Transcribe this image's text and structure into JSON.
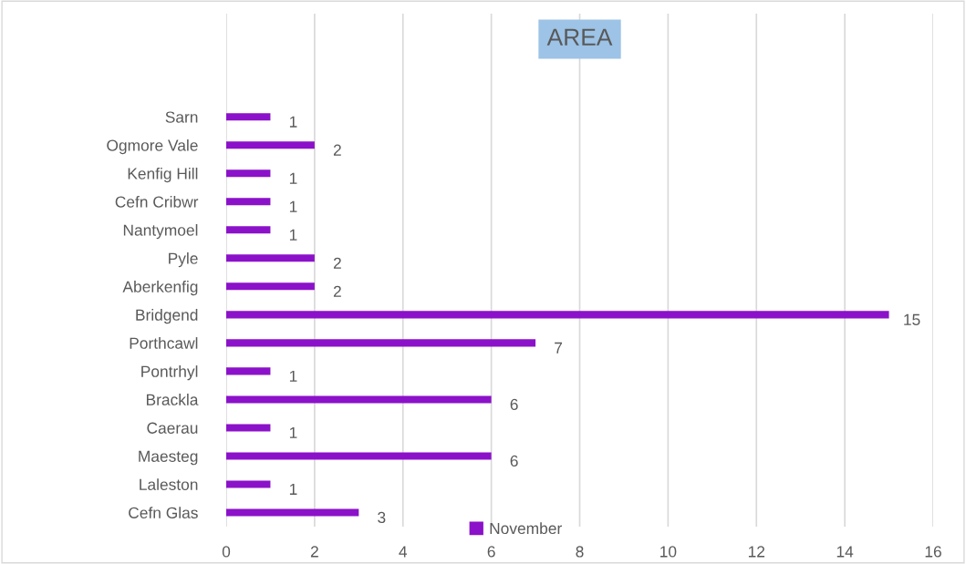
{
  "chart_data": {
    "type": "bar",
    "orientation": "horizontal",
    "title": "AREA",
    "categories": [
      "Sarn",
      "Ogmore Vale",
      "Kenfig Hill",
      "Cefn Cribwr",
      "Nantymoel",
      "Pyle",
      "Aberkenfig",
      "Bridgend",
      "Porthcawl",
      "Pontrhyl",
      "Brackla",
      "Caerau",
      "Maesteg",
      "Laleston",
      "Cefn Glas"
    ],
    "series": [
      {
        "name": "November",
        "color": "#8b12c9",
        "values": [
          1,
          2,
          1,
          1,
          1,
          2,
          2,
          15,
          7,
          1,
          6,
          1,
          6,
          1,
          3
        ]
      }
    ],
    "xlim": [
      0,
      16
    ],
    "xticks": [
      0,
      2,
      4,
      6,
      8,
      10,
      12,
      14,
      16
    ],
    "grid": "x",
    "legend": "bottom",
    "data_labels": true
  }
}
